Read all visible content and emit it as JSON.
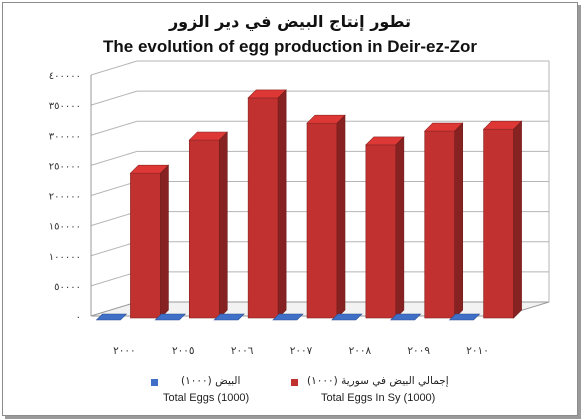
{
  "title_ar": "تطور إنتاج البيض في دير الزور",
  "title_en": "The evolution of egg production in Deir-ez-Zor",
  "chart_data": {
    "type": "bar",
    "categories": [
      "٢٠٠٠",
      "٢٠٠٥",
      "٢٠٠٦",
      "٢٠٠٧",
      "٢٠٠٨",
      "٢٠٠٩",
      "٢٠١٠"
    ],
    "series": [
      {
        "name": "البيض (١٠٠٠) Total Eggs (1000)",
        "values": [
          0,
          0,
          0,
          0,
          0,
          0,
          0
        ],
        "color": "#3f6fc6"
      },
      {
        "name": "إجمالي البيض في سورية (١٠٠٠) Total Eggs In Sy (1000)",
        "values": [
          237000,
          292000,
          362000,
          320000,
          284000,
          307000,
          310000
        ],
        "color": "#c0312f"
      }
    ],
    "yticks": [
      "٠",
      "٥٠٠٠٠",
      "١٠٠٠٠٠",
      "١٥٠٠٠٠",
      "٢٠٠٠٠٠",
      "٢٥٠٠٠٠",
      "٣٠٠٠٠٠",
      "٣٥٠٠٠٠",
      "٤٠٠٠٠٠"
    ],
    "ylim": [
      0,
      400000
    ],
    "grid": true,
    "three_d": true,
    "legend_position": "bottom"
  },
  "legend": [
    {
      "label_ar": "البيض (١٠٠٠)",
      "label_en": "Total Eggs (1000)",
      "color": "#3f6fc6"
    },
    {
      "label_ar": "إجمالي البيض في سورية (١٠٠٠)",
      "label_en": "Total Eggs In Sy (1000)",
      "color": "#c0312f"
    }
  ]
}
